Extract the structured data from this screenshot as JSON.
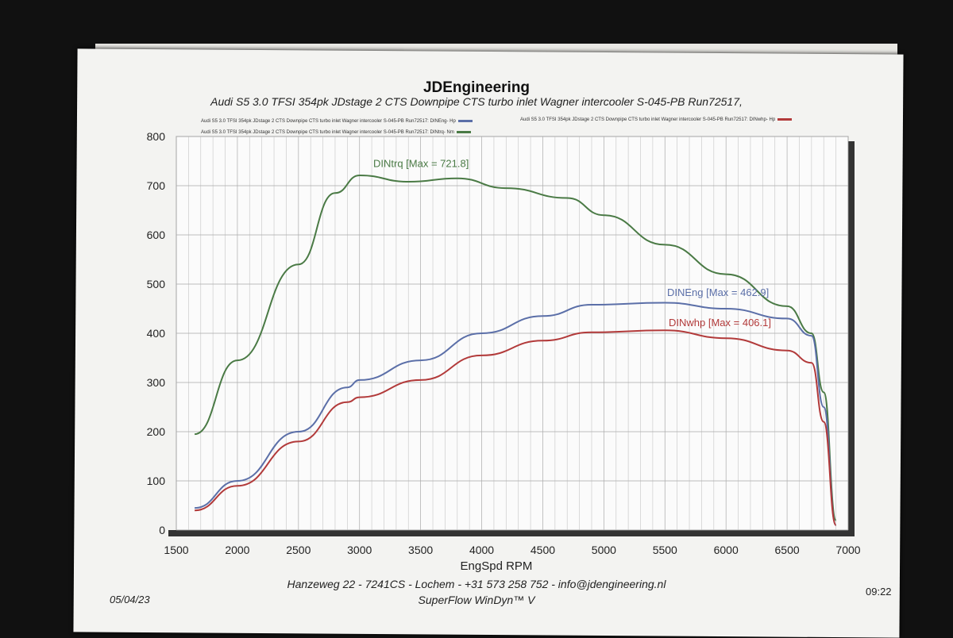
{
  "header": {
    "company": "JDEngineering",
    "subtitle": "Audi S5 3.0 TFSI 354pk   JDstage 2   CTS Downpipe CTS turbo inlet Wagner intercooler   S-045-PB   Run72517,"
  },
  "legend": [
    {
      "text": "Audi S5 3.0 TFSI 354pk   JDstage 2   CTS Downpipe CTS turbo inlet Wagner intercooler   S-045-PB   Run72517: DINEng- Hp",
      "color": "#5b6fa8"
    },
    {
      "text": "Audi S5 3.0 TFSI 354pk   JDstage 2   CTS Downpipe CTS turbo inlet Wagner intercooler   S-045-PB   Run72517: DINwhp- Hp",
      "color": "#b23a3a"
    },
    {
      "text": "Audi S5 3.0 TFSI 354pk   JDstage 2   CTS Downpipe CTS turbo inlet Wagner intercooler   S-045-PB   Run72517: DINtrq- Nm",
      "color": "#4a7a45"
    }
  ],
  "footer": {
    "address": "Hanzeweg 22 - 7241CS - Lochem - +31 573 258 752 - info@jdengineering.nl",
    "software": "SuperFlow WinDyn™ V",
    "date": "05/04/23",
    "time": "09:22"
  },
  "chart_data": {
    "type": "line",
    "title": "JDEngineering",
    "xlabel": "EngSpd  RPM",
    "ylabel": "",
    "xlim": [
      1500,
      7000
    ],
    "ylim": [
      0,
      800
    ],
    "xticks": [
      1500,
      2000,
      2500,
      3000,
      3500,
      4000,
      4500,
      5000,
      5500,
      6000,
      6500,
      7000
    ],
    "yticks": [
      0,
      100,
      200,
      300,
      400,
      500,
      600,
      700,
      800
    ],
    "grid": true,
    "series": [
      {
        "name": "DINtrq",
        "annotation": "DINtrq [Max = 721.8]",
        "color": "#4a7a45",
        "x": [
          1650,
          2000,
          2500,
          2800,
          3000,
          3400,
          3800,
          4200,
          4700,
          5000,
          5500,
          6000,
          6500,
          6700,
          6800,
          6900
        ],
        "y": [
          195,
          345,
          540,
          685,
          721,
          708,
          715,
          695,
          675,
          640,
          580,
          520,
          455,
          400,
          280,
          20
        ]
      },
      {
        "name": "DINEng",
        "annotation": "DINEng [Max = 462.9]",
        "color": "#5b6fa8",
        "x": [
          1650,
          2000,
          2500,
          2900,
          3000,
          3500,
          4000,
          4500,
          4900,
          5500,
          6000,
          6500,
          6700,
          6800,
          6900
        ],
        "y": [
          45,
          100,
          200,
          290,
          305,
          345,
          400,
          435,
          458,
          462,
          450,
          430,
          395,
          250,
          10
        ]
      },
      {
        "name": "DINwhp",
        "annotation": "DINwhp [Max = 406.1]",
        "color": "#b23a3a",
        "x": [
          1650,
          2000,
          2500,
          2900,
          3000,
          3500,
          4000,
          4500,
          4900,
          5500,
          6000,
          6500,
          6700,
          6800,
          6900
        ],
        "y": [
          40,
          90,
          180,
          260,
          270,
          305,
          355,
          385,
          402,
          406,
          390,
          365,
          340,
          220,
          10
        ]
      }
    ]
  }
}
